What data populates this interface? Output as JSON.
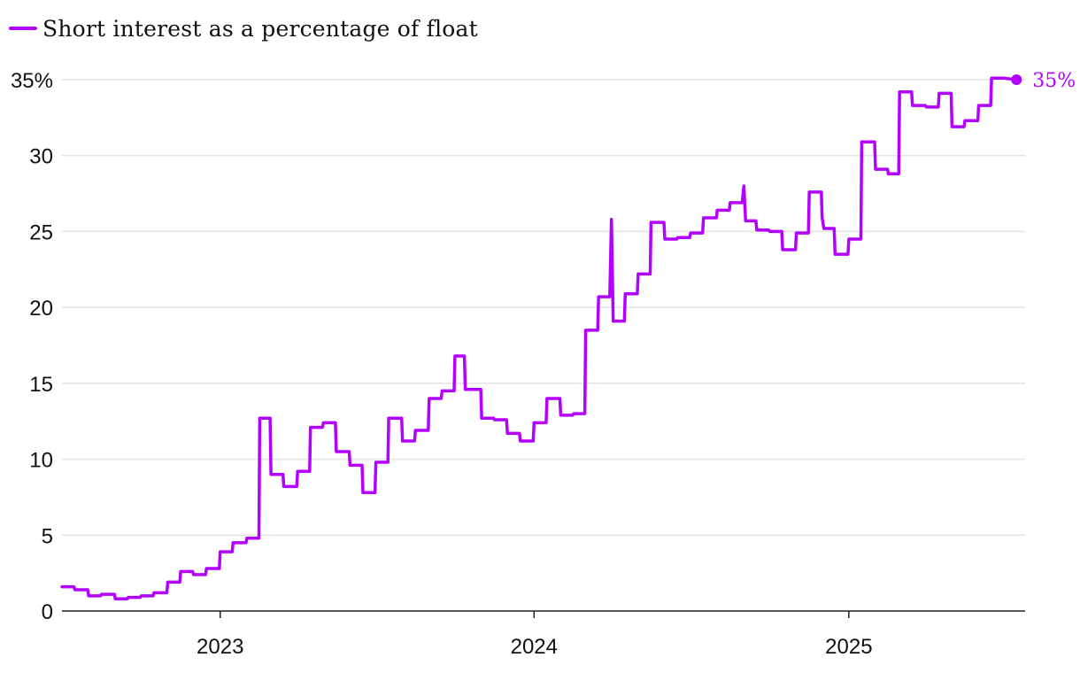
{
  "legend": {
    "label": "Short interest as a percentage of float",
    "color": "#b300ff"
  },
  "chart_data": {
    "type": "line",
    "title": "",
    "xlabel": "",
    "ylabel": "",
    "ylim": [
      0,
      35
    ],
    "xlim": [
      "2022-07-01",
      "2025-07-25"
    ],
    "y_ticks": [
      {
        "value": 0,
        "label": "0"
      },
      {
        "value": 5,
        "label": "5"
      },
      {
        "value": 10,
        "label": "10"
      },
      {
        "value": 15,
        "label": "15"
      },
      {
        "value": 20,
        "label": "20"
      },
      {
        "value": 25,
        "label": "25"
      },
      {
        "value": 30,
        "label": "30"
      },
      {
        "value": 35,
        "label": "35%"
      }
    ],
    "x_ticks": [
      {
        "value": "2023-01-01",
        "label": "2023"
      },
      {
        "value": "2024-01-01",
        "label": "2024"
      },
      {
        "value": "2025-01-01",
        "label": "2025"
      }
    ],
    "grid": true,
    "legend_position": "top-left",
    "end_label": "35%",
    "series": [
      {
        "name": "Short interest as a percentage of float",
        "color": "#b300ff",
        "points": [
          [
            "2022-07-01",
            1.6
          ],
          [
            "2022-07-15",
            1.6
          ],
          [
            "2022-07-16",
            1.4
          ],
          [
            "2022-07-31",
            1.4
          ],
          [
            "2022-08-01",
            1.0
          ],
          [
            "2022-08-15",
            1.0
          ],
          [
            "2022-08-16",
            1.1
          ],
          [
            "2022-08-31",
            1.1
          ],
          [
            "2022-09-01",
            0.8
          ],
          [
            "2022-09-15",
            0.8
          ],
          [
            "2022-09-16",
            0.9
          ],
          [
            "2022-09-30",
            0.9
          ],
          [
            "2022-10-01",
            1.0
          ],
          [
            "2022-10-15",
            1.0
          ],
          [
            "2022-10-16",
            1.2
          ],
          [
            "2022-10-31",
            1.2
          ],
          [
            "2022-11-01",
            1.9
          ],
          [
            "2022-11-15",
            1.9
          ],
          [
            "2022-11-16",
            2.6
          ],
          [
            "2022-11-30",
            2.6
          ],
          [
            "2022-12-01",
            2.4
          ],
          [
            "2022-12-15",
            2.4
          ],
          [
            "2022-12-16",
            2.8
          ],
          [
            "2022-12-31",
            2.8
          ],
          [
            "2023-01-01",
            3.9
          ],
          [
            "2023-01-15",
            3.9
          ],
          [
            "2023-01-16",
            4.5
          ],
          [
            "2023-01-31",
            4.5
          ],
          [
            "2023-02-01",
            4.8
          ],
          [
            "2023-02-15",
            4.8
          ],
          [
            "2023-02-16",
            12.7
          ],
          [
            "2023-02-28",
            12.7
          ],
          [
            "2023-03-01",
            9.0
          ],
          [
            "2023-03-15",
            9.0
          ],
          [
            "2023-03-16",
            8.2
          ],
          [
            "2023-03-31",
            8.2
          ],
          [
            "2023-04-01",
            9.2
          ],
          [
            "2023-04-15",
            9.2
          ],
          [
            "2023-04-16",
            12.1
          ],
          [
            "2023-04-30",
            12.1
          ],
          [
            "2023-05-01",
            12.4
          ],
          [
            "2023-05-15",
            12.4
          ],
          [
            "2023-05-16",
            10.5
          ],
          [
            "2023-05-31",
            10.5
          ],
          [
            "2023-06-01",
            9.6
          ],
          [
            "2023-06-15",
            9.6
          ],
          [
            "2023-06-16",
            7.8
          ],
          [
            "2023-06-30",
            7.8
          ],
          [
            "2023-07-01",
            9.8
          ],
          [
            "2023-07-15",
            9.8
          ],
          [
            "2023-07-16",
            12.7
          ],
          [
            "2023-07-31",
            12.7
          ],
          [
            "2023-08-01",
            11.2
          ],
          [
            "2023-08-15",
            11.2
          ],
          [
            "2023-08-16",
            11.9
          ],
          [
            "2023-08-31",
            11.9
          ],
          [
            "2023-09-01",
            14.0
          ],
          [
            "2023-09-15",
            14.0
          ],
          [
            "2023-09-16",
            14.5
          ],
          [
            "2023-09-30",
            14.5
          ],
          [
            "2023-10-01",
            16.8
          ],
          [
            "2023-10-12",
            16.8
          ],
          [
            "2023-10-13",
            14.6
          ],
          [
            "2023-10-31",
            14.6
          ],
          [
            "2023-11-01",
            12.7
          ],
          [
            "2023-11-15",
            12.7
          ],
          [
            "2023-11-16",
            12.6
          ],
          [
            "2023-11-30",
            12.6
          ],
          [
            "2023-12-01",
            11.7
          ],
          [
            "2023-12-15",
            11.7
          ],
          [
            "2023-12-16",
            11.2
          ],
          [
            "2023-12-31",
            11.2
          ],
          [
            "2024-01-01",
            12.4
          ],
          [
            "2024-01-15",
            12.4
          ],
          [
            "2024-01-16",
            14.0
          ],
          [
            "2024-01-31",
            14.0
          ],
          [
            "2024-02-01",
            12.9
          ],
          [
            "2024-02-15",
            12.9
          ],
          [
            "2024-02-16",
            13.0
          ],
          [
            "2024-02-29",
            13.0
          ],
          [
            "2024-03-01",
            18.5
          ],
          [
            "2024-03-15",
            18.5
          ],
          [
            "2024-03-16",
            20.7
          ],
          [
            "2024-03-29",
            20.7
          ],
          [
            "2024-03-31",
            25.8
          ],
          [
            "2024-04-02",
            19.1
          ],
          [
            "2024-04-15",
            19.1
          ],
          [
            "2024-04-16",
            20.9
          ],
          [
            "2024-04-30",
            20.9
          ],
          [
            "2024-05-01",
            22.2
          ],
          [
            "2024-05-15",
            22.2
          ],
          [
            "2024-05-16",
            25.6
          ],
          [
            "2024-05-31",
            25.6
          ],
          [
            "2024-06-01",
            24.5
          ],
          [
            "2024-06-15",
            24.5
          ],
          [
            "2024-06-16",
            24.6
          ],
          [
            "2024-06-30",
            24.6
          ],
          [
            "2024-07-01",
            24.9
          ],
          [
            "2024-07-15",
            24.9
          ],
          [
            "2024-07-16",
            25.9
          ],
          [
            "2024-07-31",
            25.9
          ],
          [
            "2024-08-01",
            26.4
          ],
          [
            "2024-08-15",
            26.4
          ],
          [
            "2024-08-16",
            26.9
          ],
          [
            "2024-08-30",
            26.9
          ],
          [
            "2024-09-01",
            28.0
          ],
          [
            "2024-09-03",
            25.7
          ],
          [
            "2024-09-15",
            25.7
          ],
          [
            "2024-09-16",
            25.1
          ],
          [
            "2024-09-30",
            25.1
          ],
          [
            "2024-10-01",
            25.0
          ],
          [
            "2024-10-15",
            25.0
          ],
          [
            "2024-10-16",
            23.8
          ],
          [
            "2024-10-31",
            23.8
          ],
          [
            "2024-11-01",
            24.9
          ],
          [
            "2024-11-15",
            24.9
          ],
          [
            "2024-11-16",
            27.6
          ],
          [
            "2024-11-30",
            27.6
          ],
          [
            "2024-12-01",
            25.9
          ],
          [
            "2024-12-03",
            25.2
          ],
          [
            "2024-12-15",
            25.2
          ],
          [
            "2024-12-16",
            23.5
          ],
          [
            "2024-12-31",
            23.5
          ],
          [
            "2025-01-01",
            24.5
          ],
          [
            "2025-01-15",
            24.5
          ],
          [
            "2025-01-16",
            30.9
          ],
          [
            "2025-01-31",
            30.9
          ],
          [
            "2025-02-01",
            29.1
          ],
          [
            "2025-02-15",
            29.1
          ],
          [
            "2025-02-16",
            28.8
          ],
          [
            "2025-02-28",
            28.8
          ],
          [
            "2025-03-01",
            34.2
          ],
          [
            "2025-03-15",
            34.2
          ],
          [
            "2025-03-16",
            33.3
          ],
          [
            "2025-03-31",
            33.3
          ],
          [
            "2025-04-01",
            33.2
          ],
          [
            "2025-04-15",
            33.2
          ],
          [
            "2025-04-16",
            34.1
          ],
          [
            "2025-04-30",
            34.1
          ],
          [
            "2025-05-01",
            31.9
          ],
          [
            "2025-05-15",
            31.9
          ],
          [
            "2025-05-16",
            32.3
          ],
          [
            "2025-05-31",
            32.3
          ],
          [
            "2025-06-01",
            33.3
          ],
          [
            "2025-06-15",
            33.3
          ],
          [
            "2025-06-16",
            35.1
          ],
          [
            "2025-06-30",
            35.1
          ],
          [
            "2025-07-01",
            35.1
          ],
          [
            "2025-07-15",
            35.0
          ]
        ]
      }
    ]
  }
}
